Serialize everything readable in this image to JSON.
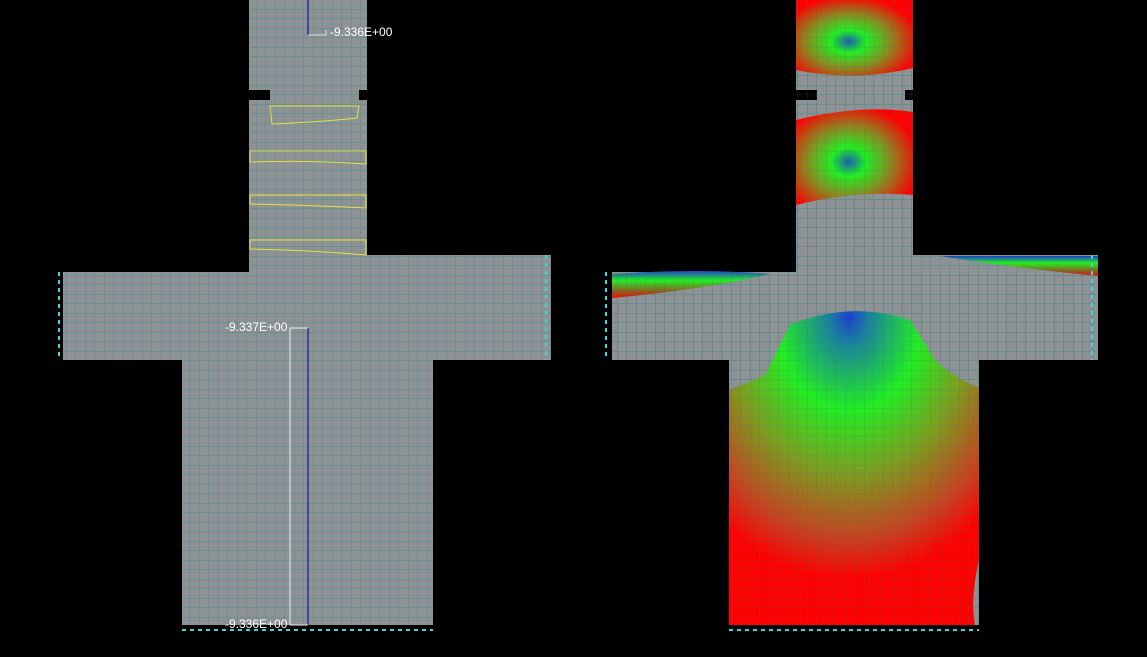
{
  "annotations": {
    "top_label": "-9.336E+00",
    "middle_label": "-9.337E+00",
    "bottom_label": "-9.336E+00"
  }
}
